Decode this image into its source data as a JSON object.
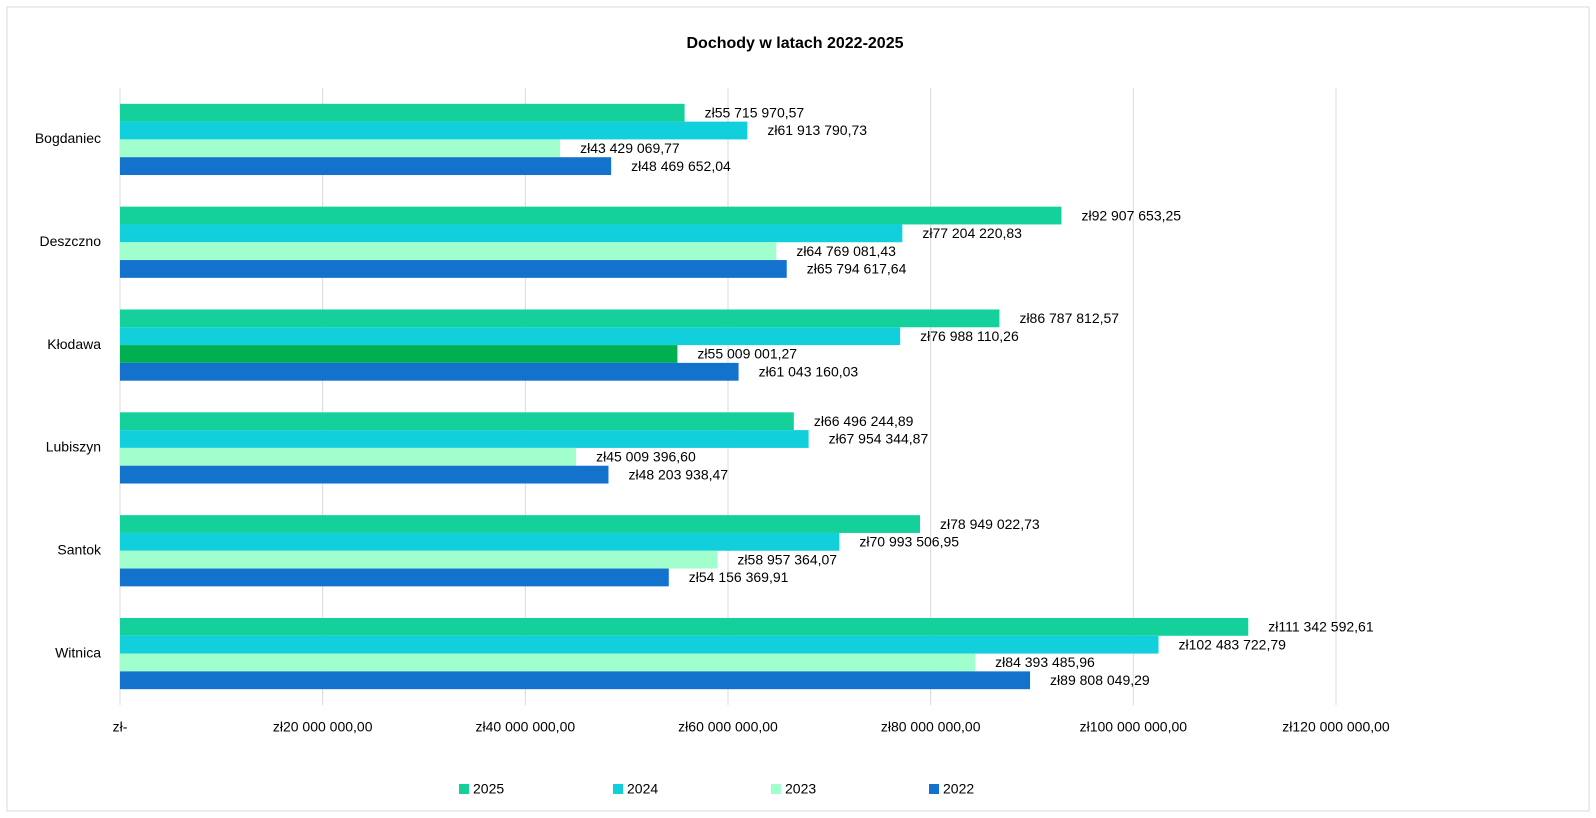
{
  "chart_data": {
    "type": "hbar",
    "title": "Dochody w latach 2022-2025",
    "categories": [
      "Bogdaniec",
      "Deszczno",
      "Kłodawa",
      "Lubiszyn",
      "Santok",
      "Witnica"
    ],
    "series": [
      {
        "name": "2025",
        "color": "#14d19c",
        "values": [
          55715970.57,
          92907653.25,
          86787812.57,
          66496244.89,
          78949022.73,
          111342592.61
        ],
        "value_labels": [
          "zł55 715 970,57",
          "zł92 907 653,25",
          "zł86 787 812,57",
          "zł66 496 244,89",
          "zł78 949 022,73",
          "zł111 342 592,61"
        ]
      },
      {
        "name": "2024",
        "color": "#12cfdc",
        "values": [
          61913790.73,
          77204220.83,
          76988110.26,
          67954344.87,
          70993506.95,
          102483722.79
        ],
        "value_labels": [
          "zł61 913 790,73",
          "zł77 204 220,83",
          "zł76 988 110,26",
          "zł67 954 344,87",
          "zł70 993 506,95",
          "zł102 483 722,79"
        ]
      },
      {
        "name": "2023",
        "color": "#a0ffcc",
        "colors": [
          "#a0ffcc",
          "#a0ffcc",
          "#00b050",
          "#a0ffcc",
          "#a0ffcc",
          "#a0ffcc"
        ],
        "values": [
          43429069.77,
          64769081.43,
          55009001.27,
          45009396.6,
          58957364.07,
          84393485.96
        ],
        "value_labels": [
          "zł43 429 069,77",
          "zł64 769 081,43",
          "zł55 009 001,27",
          "zł45 009 396,60",
          "zł58 957 364,07",
          "zł84 393 485,96"
        ]
      },
      {
        "name": "2022",
        "color": "#1272cc",
        "values": [
          48469652.04,
          65794617.64,
          61043160.03,
          48203938.47,
          54156369.91,
          89808049.29
        ],
        "value_labels": [
          "zł48 469 652,04",
          "zł65 794 617,64",
          "zł61 043 160,03",
          "zł48 203 938,47",
          "zł54 156 369,91",
          "zł89 808 049,29"
        ]
      }
    ],
    "xlim": [
      0,
      120000000
    ],
    "xticks": [
      {
        "value": 0,
        "label": "zł-"
      },
      {
        "value": 20000000,
        "label": "zł20 000 000,00"
      },
      {
        "value": 40000000,
        "label": "zł40 000 000,00"
      },
      {
        "value": 60000000,
        "label": "zł60 000 000,00"
      },
      {
        "value": 80000000,
        "label": "zł80 000 000,00"
      },
      {
        "value": 100000000,
        "label": "zł100 000 000,00"
      },
      {
        "value": 120000000,
        "label": "zł120 000 000,00"
      }
    ],
    "grid": true,
    "legend": "bottom"
  }
}
